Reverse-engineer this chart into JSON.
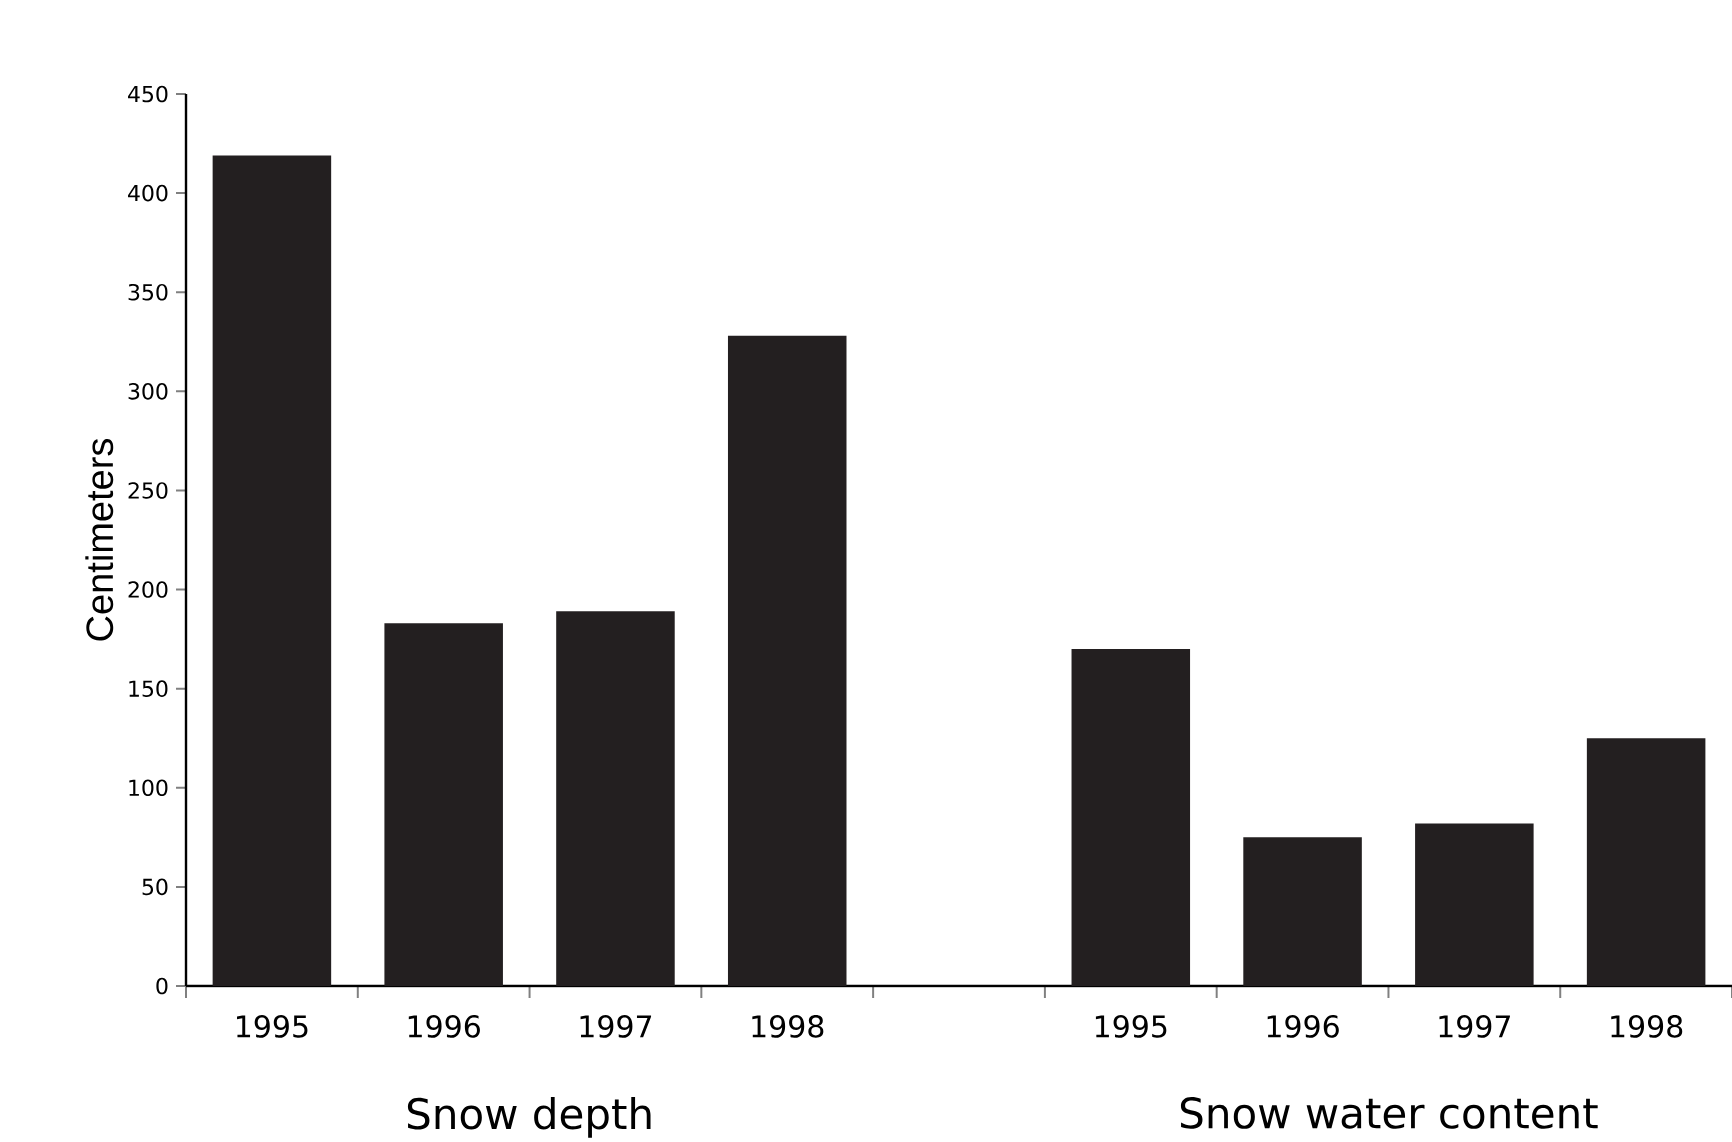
{
  "chart_data": {
    "type": "bar",
    "ylabel": "Centimeters",
    "categories": [
      "1995",
      "1996",
      "1997",
      "1998",
      null,
      "1995",
      "1996",
      "1997",
      "1998"
    ],
    "values": [
      419,
      183,
      189,
      328,
      0,
      170,
      75,
      82,
      125
    ],
    "color": "#231f20",
    "ylim": [
      0,
      450
    ],
    "yticks": [
      0,
      50,
      100,
      150,
      200,
      250,
      300,
      350,
      400,
      450
    ],
    "annotations": [
      "Snow depth",
      "Snow water content"
    ]
  }
}
